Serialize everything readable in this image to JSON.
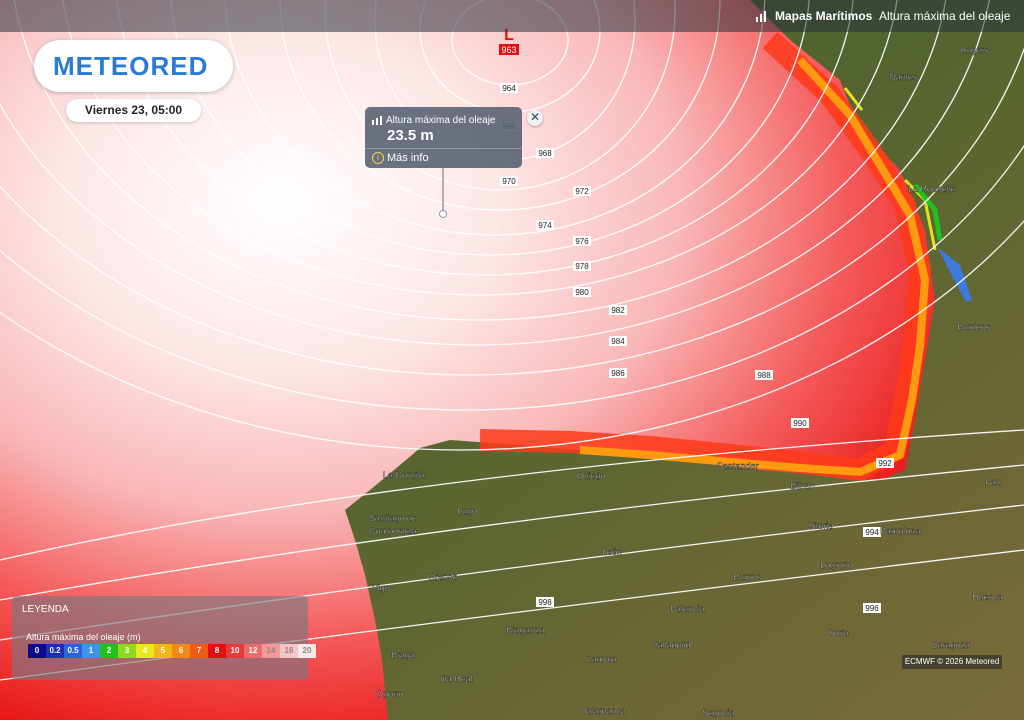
{
  "header": {
    "section_title": "Mapas Marítimos",
    "layer_title": "Altura máxima del oleaje",
    "wave_icon": "wave-icon"
  },
  "brand": {
    "logo_text": "METEORED"
  },
  "date_label": "Viernes 23, 05:00",
  "popup": {
    "title": "Altura máxima del oleaje",
    "value": "23.5 m",
    "more_info": "Más info",
    "close_icon": "close-icon",
    "info_icon": "info-icon"
  },
  "low_pressure": {
    "symbol": "L",
    "value": "963"
  },
  "isobar_labels": [
    "964",
    "966",
    "968",
    "970",
    "972",
    "974",
    "976",
    "978",
    "980",
    "982",
    "984",
    "986",
    "988",
    "990",
    "992",
    "994",
    "996",
    "998"
  ],
  "cities": [
    {
      "name": "Angers"
    },
    {
      "name": "Nantes"
    },
    {
      "name": "La Rochelle"
    },
    {
      "name": "Burdeos"
    },
    {
      "name": "Pau"
    },
    {
      "name": "La Coruña"
    },
    {
      "name": "Oviedo"
    },
    {
      "name": "Santander"
    },
    {
      "name": "Bilbao"
    },
    {
      "name": "Lugo"
    },
    {
      "name": "Santiago de"
    },
    {
      "name": "Compostela"
    },
    {
      "name": "Vitoria"
    },
    {
      "name": "Pamplona"
    },
    {
      "name": "León"
    },
    {
      "name": "Logroño"
    },
    {
      "name": "Orense"
    },
    {
      "name": "Burgos"
    },
    {
      "name": "Vigo"
    },
    {
      "name": "Huesca"
    },
    {
      "name": "Palencia"
    },
    {
      "name": "Braganza"
    },
    {
      "name": "Soria"
    },
    {
      "name": "Zaragoza"
    },
    {
      "name": "Valladolid"
    },
    {
      "name": "Braga"
    },
    {
      "name": "Zamora"
    },
    {
      "name": "Vila Real"
    },
    {
      "name": "Oporto"
    },
    {
      "name": "Salamanca"
    },
    {
      "name": "Segovia"
    }
  ],
  "legend": {
    "title": "LEYENDA",
    "label": "Altura máxima del oleaje (m)",
    "scale": [
      {
        "v": "0",
        "c": "#0a0a8a"
      },
      {
        "v": "0.2",
        "c": "#1a2fb5"
      },
      {
        "v": "0.5",
        "c": "#2a64d8"
      },
      {
        "v": "1",
        "c": "#3c95e8"
      },
      {
        "v": "2",
        "c": "#22c21e"
      },
      {
        "v": "3",
        "c": "#8fd81c"
      },
      {
        "v": "4",
        "c": "#e8e81c"
      },
      {
        "v": "5",
        "c": "#f3b51a"
      },
      {
        "v": "6",
        "c": "#f38a17"
      },
      {
        "v": "7",
        "c": "#ef5a14"
      },
      {
        "v": "8",
        "c": "#e01010"
      },
      {
        "v": "10",
        "c": "#e63a3a"
      },
      {
        "v": "12",
        "c": "#ec6a6a"
      },
      {
        "v": "14",
        "c": "#f29a9a"
      },
      {
        "v": "16",
        "c": "#f6c6c6"
      },
      {
        "v": "20",
        "c": "#fbe8e8"
      }
    ]
  },
  "credit": "ECMWF © 2026 Meteored"
}
